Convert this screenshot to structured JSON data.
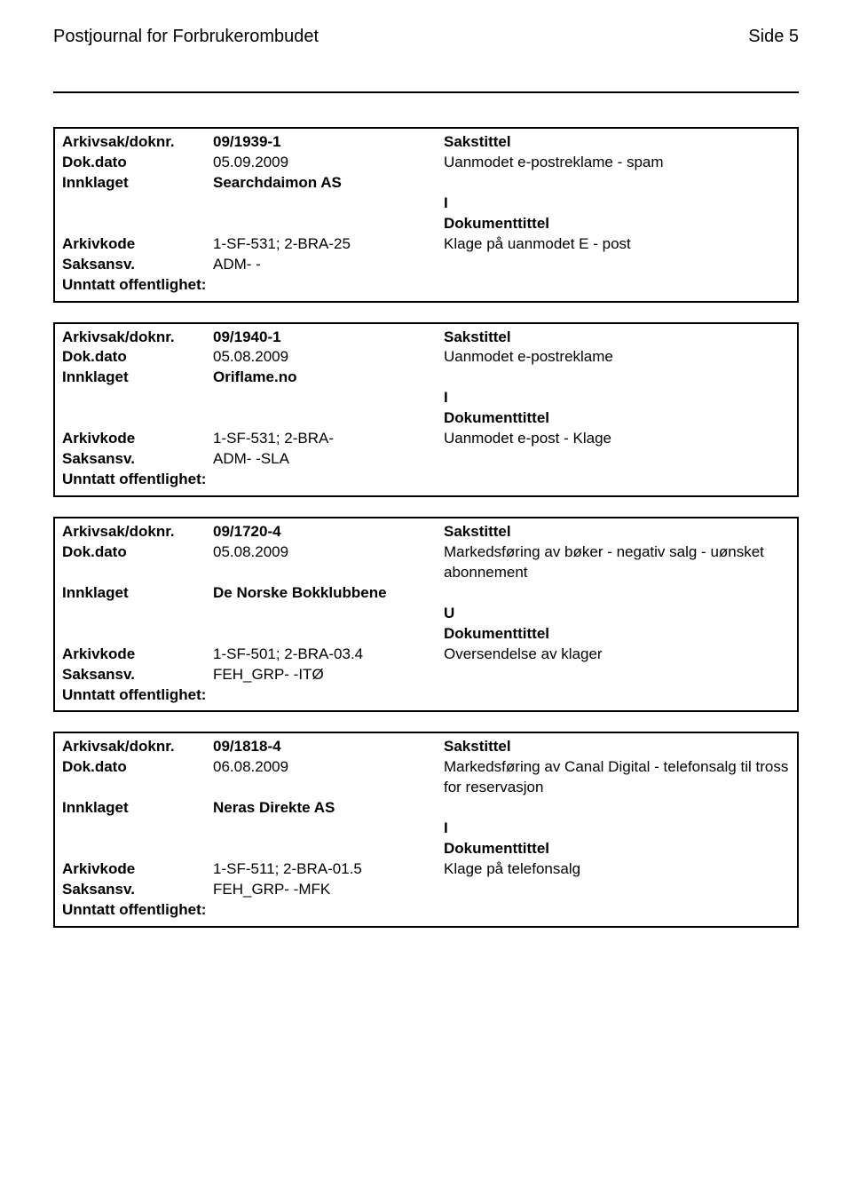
{
  "header": {
    "title": "Postjournal for Forbrukerombudet",
    "page_label": "Side 5"
  },
  "field_labels": {
    "arkivsak": "Arkivsak/doknr.",
    "dokdato": "Dok.dato",
    "innklaget": "Innklaget",
    "arkivkode": "Arkivkode",
    "saksansv": "Saksansv.",
    "unntatt": "Unntatt offentlighet:",
    "sakstittel": "Sakstittel",
    "dokumenttittel": "Dokumenttittel"
  },
  "entries": [
    {
      "arkivsak": "09/1939-1",
      "dokdato": "05.09.2009",
      "innklaget": "Searchdaimon AS",
      "arkivkode": "1-SF-531; 2-BRA-25",
      "saksansv": "ADM- -",
      "unntatt": "",
      "sakstittel": "Uanmodet e-postreklame - spam",
      "direction": "I",
      "dokumenttittel": "Klage på uanmodet E - post"
    },
    {
      "arkivsak": "09/1940-1",
      "dokdato": "05.08.2009",
      "innklaget": "Oriflame.no",
      "arkivkode": "1-SF-531; 2-BRA-",
      "saksansv": "ADM- -SLA",
      "unntatt": "",
      "sakstittel": "Uanmodet e-postreklame",
      "direction": "I",
      "dokumenttittel": "Uanmodet e-post - Klage"
    },
    {
      "arkivsak": "09/1720-4",
      "dokdato": "05.08.2009",
      "innklaget": "De Norske Bokklubbene",
      "arkivkode": "1-SF-501; 2-BRA-03.4",
      "saksansv": "FEH_GRP- -ITØ",
      "unntatt": "",
      "sakstittel": "Markedsføring av bøker - negativ salg - uønsket abonnement",
      "direction": "U",
      "dokumenttittel": "Oversendelse av klager"
    },
    {
      "arkivsak": "09/1818-4",
      "dokdato": "06.08.2009",
      "innklaget": "Neras Direkte AS",
      "arkivkode": "1-SF-511; 2-BRA-01.5",
      "saksansv": "FEH_GRP- -MFK",
      "unntatt": "",
      "sakstittel": "Markedsføring av Canal Digital - telefonsalg til tross for reservasjon",
      "direction": "I",
      "dokumenttittel": "Klage på telefonsalg"
    }
  ]
}
